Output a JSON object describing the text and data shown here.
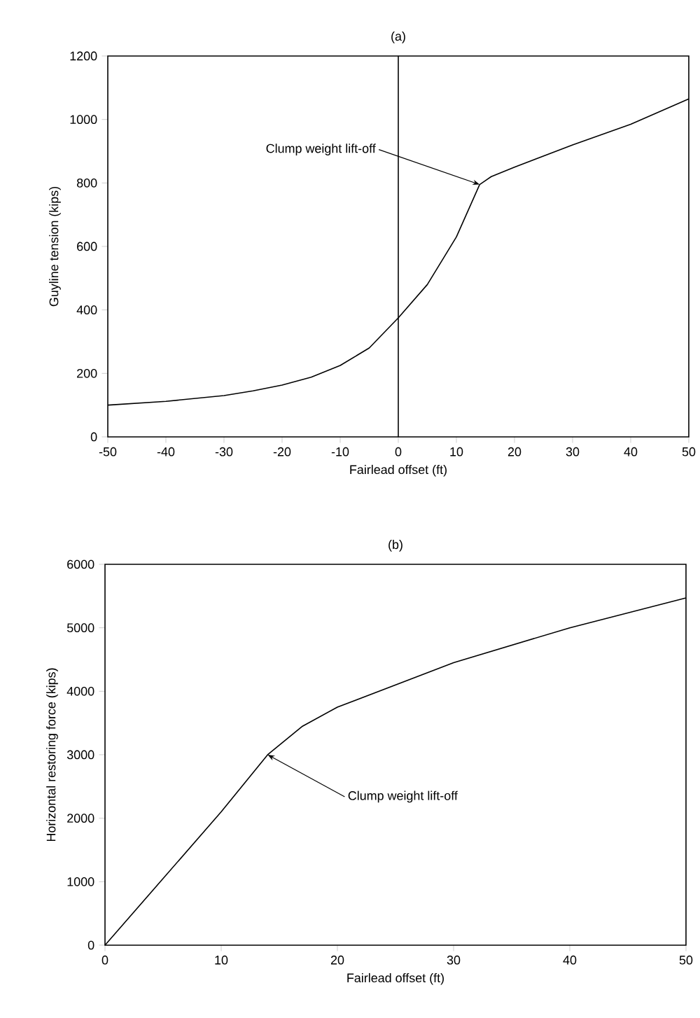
{
  "chart_data": [
    {
      "type": "line",
      "title": "(a)",
      "xlabel": "Fairlead offset (ft)",
      "ylabel": "Guyline tension (kips)",
      "x": [
        -50,
        -40,
        -30,
        -25,
        -20,
        -15,
        -10,
        -5,
        0,
        5,
        8,
        10,
        14,
        16,
        20,
        30,
        40,
        50
      ],
      "values": [
        100,
        112,
        130,
        145,
        163,
        188,
        225,
        280,
        375,
        480,
        570,
        630,
        795,
        820,
        850,
        920,
        985,
        1065
      ],
      "color": "#000000",
      "xlim": [
        -50,
        50
      ],
      "ylim": [
        0,
        1200
      ],
      "xticks": [
        -50,
        -40,
        -30,
        -20,
        -10,
        0,
        10,
        20,
        30,
        40,
        50
      ],
      "yticks": [
        0,
        200,
        400,
        600,
        800,
        1000,
        1200
      ],
      "ref_lines": [
        {
          "axis": "x",
          "value": 0
        }
      ],
      "annotations": [
        {
          "text": "Clump weight lift-off",
          "x": 14,
          "y": 795
        }
      ]
    },
    {
      "type": "line",
      "title": "(b)",
      "xlabel": "Fairlead offset (ft)",
      "ylabel": "Horizontal restoring force (kips)",
      "x": [
        0,
        5,
        10,
        14,
        17,
        20,
        25,
        30,
        40,
        50
      ],
      "values": [
        0,
        1050,
        2100,
        3000,
        3450,
        3750,
        4100,
        4450,
        5000,
        5470
      ],
      "color": "#000000",
      "xlim": [
        0,
        50
      ],
      "ylim": [
        0,
        6000
      ],
      "xticks": [
        0,
        10,
        20,
        30,
        40,
        50
      ],
      "yticks": [
        0,
        1000,
        2000,
        3000,
        4000,
        5000,
        6000
      ],
      "annotations": [
        {
          "text": "Clump weight lift-off",
          "x": 14,
          "y": 3000
        }
      ]
    }
  ]
}
